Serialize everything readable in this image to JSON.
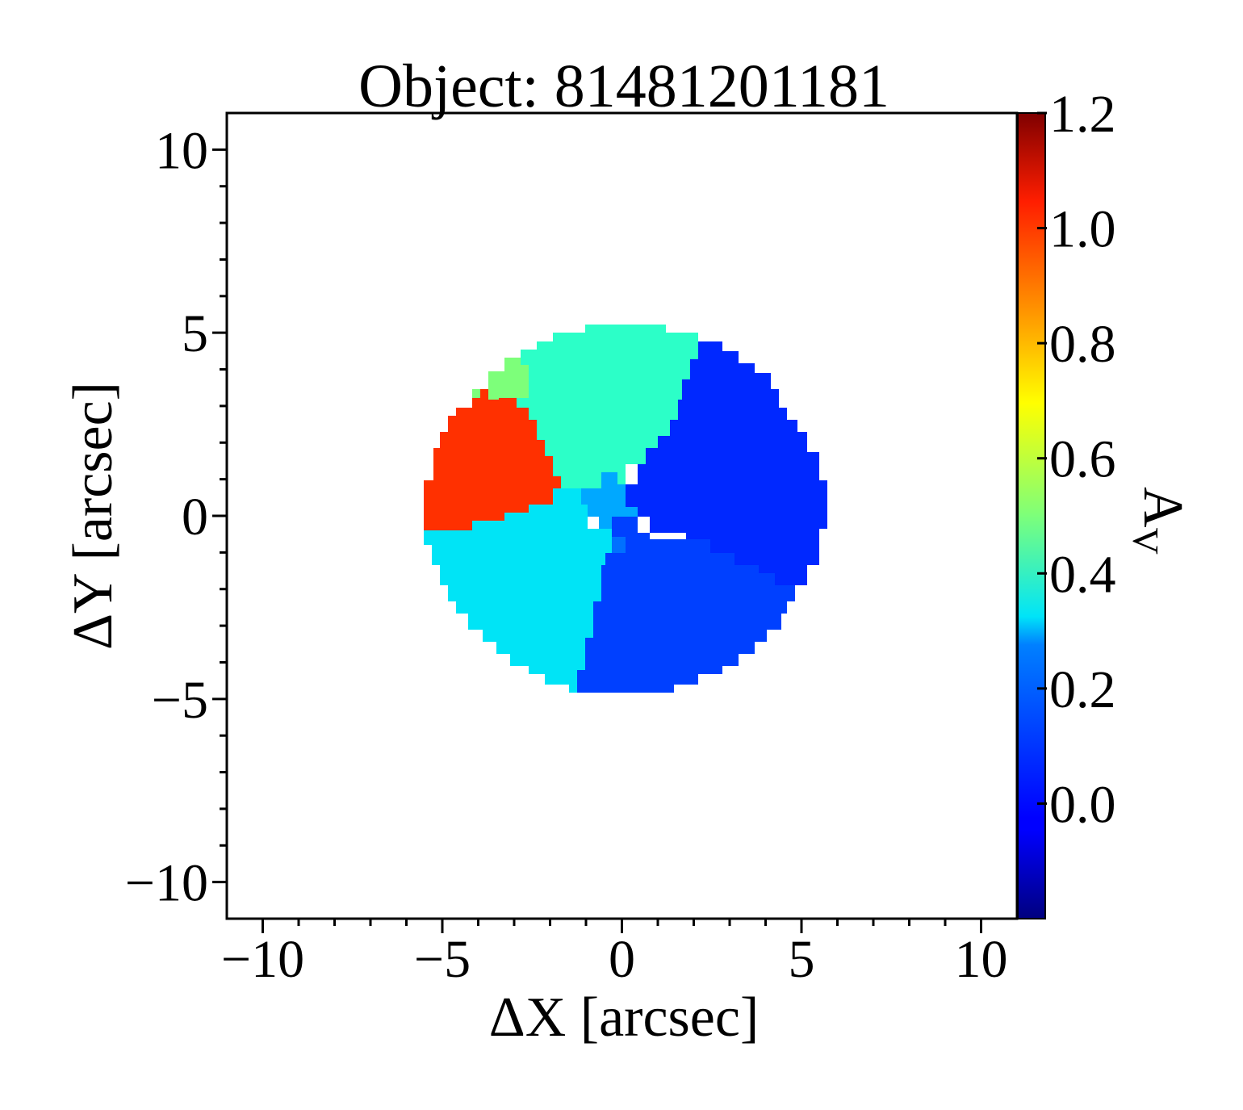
{
  "chart_data": {
    "type": "heatmap",
    "title": "Object: 81481201181",
    "xlabel": "ΔX [arcsec]",
    "ylabel": "ΔY [arcsec]",
    "xlim": [
      -11,
      11
    ],
    "ylim": [
      -11,
      11
    ],
    "x_ticks": [
      -10,
      -5,
      0,
      5,
      10
    ],
    "x_tick_labels": [
      "−10",
      "−5",
      "0",
      "5",
      "10"
    ],
    "y_ticks": [
      -10,
      -5,
      0,
      5,
      10
    ],
    "y_tick_labels": [
      "−10",
      "−5",
      "0",
      "5",
      "10"
    ],
    "colorbar": {
      "label": "A",
      "label_subscript": "V",
      "colormap": "jet",
      "range": [
        -0.2,
        1.2
      ],
      "ticks": [
        0.0,
        0.2,
        0.4,
        0.6,
        0.8,
        1.0,
        1.2
      ],
      "tick_labels": [
        "0.0",
        "0.2",
        "0.4",
        "0.6",
        "0.8",
        "1.0",
        "1.2"
      ]
    },
    "bins": [
      {
        "av": 0.02,
        "color": "#0028ff",
        "region": "east / right"
      },
      {
        "av": 0.05,
        "color": "#0040ff",
        "region": "south"
      },
      {
        "av": 0.3,
        "color": "#00e4f6",
        "region": "south-west"
      },
      {
        "av": 1.02,
        "color": "#ff3000",
        "region": "west"
      },
      {
        "av": 0.38,
        "color": "#2cffc8",
        "region": "north"
      },
      {
        "av": 0.52,
        "color": "#7dff7a",
        "region": "north-west edge"
      },
      {
        "av": 0.15,
        "color": "#00a8ff",
        "region": "center"
      }
    ]
  }
}
